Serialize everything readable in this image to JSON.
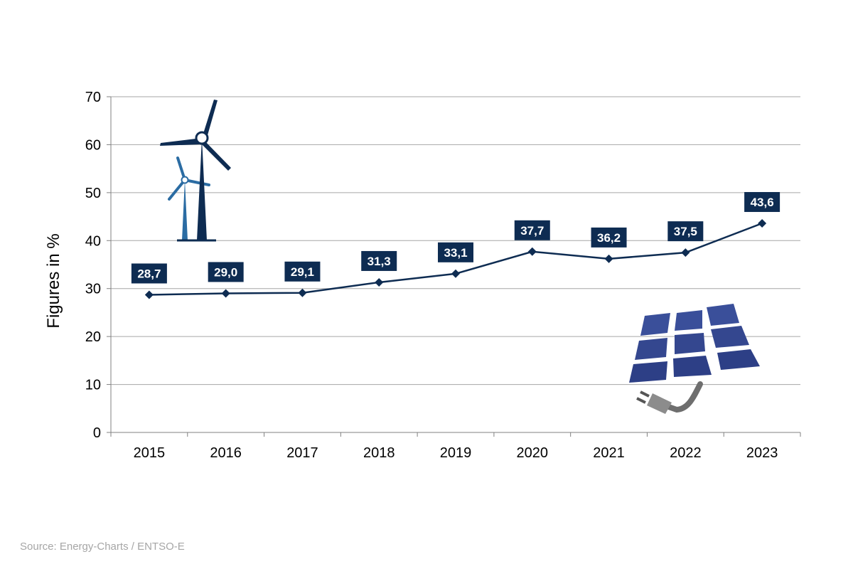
{
  "chart_data": {
    "type": "line",
    "categories": [
      "2015",
      "2016",
      "2017",
      "2018",
      "2019",
      "2020",
      "2021",
      "2022",
      "2023"
    ],
    "series": [
      {
        "values": [
          28.7,
          29.0,
          29.1,
          31.3,
          33.1,
          37.7,
          36.2,
          37.5,
          43.6
        ],
        "labels": [
          "28,7",
          "29,0",
          "29,1",
          "31,3",
          "33,1",
          "37,7",
          "36,2",
          "37,5",
          "43,6"
        ]
      }
    ],
    "ylabel": "Figures in %",
    "ylim": [
      0,
      70
    ],
    "yticks": [
      "0",
      "10",
      "20",
      "30",
      "40",
      "50",
      "60",
      "70"
    ],
    "grid": true,
    "colors": {
      "line": "#0e2c52",
      "label_bg": "#0e2c52",
      "grid": "#a6a6a6"
    }
  },
  "decorations": {
    "icons": [
      "wind-turbine-icon",
      "solar-panel-icon"
    ]
  },
  "source": "Source: Energy-Charts / ENTSO-E"
}
